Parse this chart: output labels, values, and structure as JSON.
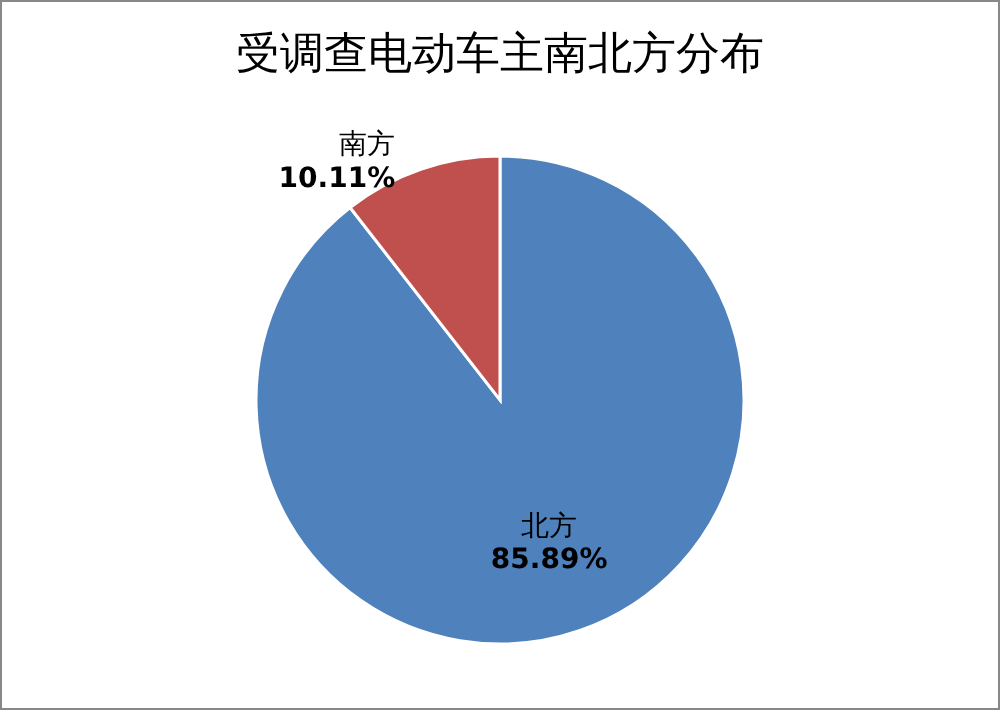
{
  "chart_data": {
    "type": "pie",
    "title": "受调查电动车主南北方分布",
    "categories": [
      "北方",
      "南方"
    ],
    "values": [
      85.89,
      10.11
    ],
    "value_labels": [
      "85.89%",
      "10.11%"
    ],
    "colors": [
      "#4f81bd",
      "#c0504d"
    ]
  }
}
